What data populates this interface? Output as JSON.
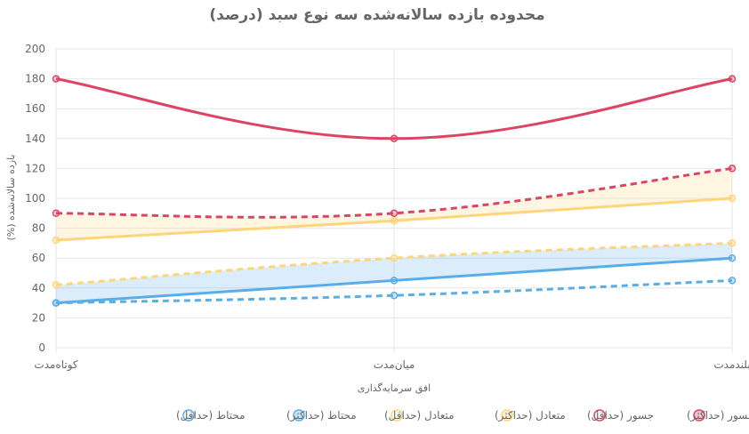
{
  "chart_data": {
    "type": "line",
    "title": "محدوده بازده سالانه‌شده سه نوع سبد (درصد)",
    "xlabel": "افق سرمایه‌گذاری",
    "ylabel": "بازده سالانه‌شده (%)",
    "categories": [
      "کوتاه‌مدت",
      "میان‌مدت",
      "بلندمدت"
    ],
    "ylim": [
      0,
      200
    ],
    "yticks": [
      0,
      20,
      40,
      60,
      80,
      100,
      120,
      140,
      160,
      180,
      200
    ],
    "grid": true,
    "legend_position": "bottom",
    "series": [
      {
        "name": "جسور (حداکثر)",
        "values": [
          180,
          140,
          180
        ],
        "color": "#dc4463",
        "dashed": false,
        "fill_to": null
      },
      {
        "name": "جسور (حداقل)",
        "values": [
          90,
          90,
          120
        ],
        "color": "#dc4463",
        "dashed": true,
        "fill_to": null
      },
      {
        "name": "متعادل (حداکثر)",
        "values": [
          72,
          85,
          100
        ],
        "color": "#ffd57a",
        "dashed": false,
        "fill_to": "جسور (حداقل)"
      },
      {
        "name": "متعادل (حداقل)",
        "values": [
          42,
          60,
          70
        ],
        "color": "#ffd57a",
        "dashed": true,
        "fill_to": null
      },
      {
        "name": "محتاط (حداکثر)",
        "values": [
          30,
          45,
          60
        ],
        "color": "#5aaee6",
        "dashed": false,
        "fill_to": "متعادل (حداقل)"
      },
      {
        "name": "محتاط (حداقل)",
        "values": [
          30,
          35,
          45
        ],
        "color": "#5aaee6",
        "dashed": true,
        "fill_to": null
      }
    ]
  }
}
